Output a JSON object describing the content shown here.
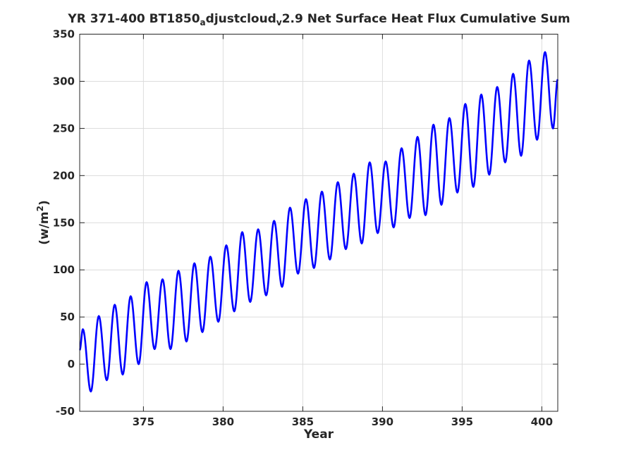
{
  "chart_data": {
    "type": "line",
    "title": {
      "part1": "YR 371-400 BT1850",
      "sub1": "a",
      "part2": "djustcloud",
      "sub2": "v",
      "part3": "2.9 Net Surface Heat Flux  Cumulative Sum"
    },
    "xlabel": "Year",
    "ylabel": {
      "base": "(w/m",
      "sup": "2",
      "close": ")"
    },
    "xlim": [
      371,
      401
    ],
    "ylim": [
      -50,
      350
    ],
    "xticks": [
      375,
      380,
      385,
      390,
      395,
      400
    ],
    "yticks": [
      -50,
      0,
      50,
      100,
      150,
      200,
      250,
      300,
      350
    ],
    "grid": true,
    "line_color": "#0000ff",
    "series": [
      {
        "peaks": [
          [
            371.2,
            37
          ],
          [
            372.2,
            51
          ],
          [
            373.2,
            63
          ],
          [
            374.2,
            72
          ],
          [
            375.2,
            87
          ],
          [
            376.2,
            90
          ],
          [
            377.2,
            99
          ],
          [
            378.2,
            107
          ],
          [
            379.2,
            114
          ],
          [
            380.2,
            126
          ],
          [
            381.2,
            140
          ],
          [
            382.2,
            143
          ],
          [
            383.2,
            152
          ],
          [
            384.2,
            166
          ],
          [
            385.2,
            175
          ],
          [
            386.2,
            183
          ],
          [
            387.2,
            193
          ],
          [
            388.2,
            202
          ],
          [
            389.2,
            214
          ],
          [
            390.2,
            215
          ],
          [
            391.2,
            229
          ],
          [
            392.2,
            241
          ],
          [
            393.2,
            254
          ],
          [
            394.2,
            261
          ],
          [
            395.2,
            276
          ],
          [
            396.2,
            286
          ],
          [
            397.2,
            294
          ],
          [
            398.2,
            308
          ],
          [
            399.2,
            322
          ],
          [
            400.2,
            331
          ]
        ],
        "troughs": [
          [
            371.7,
            -29
          ],
          [
            372.7,
            -17
          ],
          [
            373.7,
            -11
          ],
          [
            374.7,
            0
          ],
          [
            375.7,
            16
          ],
          [
            376.7,
            16
          ],
          [
            377.7,
            24
          ],
          [
            378.7,
            34
          ],
          [
            379.7,
            45
          ],
          [
            380.7,
            56
          ],
          [
            381.7,
            66
          ],
          [
            382.7,
            73
          ],
          [
            383.7,
            82
          ],
          [
            384.7,
            96
          ],
          [
            385.7,
            102
          ],
          [
            386.7,
            111
          ],
          [
            387.7,
            122
          ],
          [
            388.7,
            128
          ],
          [
            389.7,
            139
          ],
          [
            390.7,
            145
          ],
          [
            391.7,
            155
          ],
          [
            392.7,
            158
          ],
          [
            393.7,
            169
          ],
          [
            394.7,
            182
          ],
          [
            395.7,
            188
          ],
          [
            396.7,
            201
          ],
          [
            397.7,
            214
          ],
          [
            398.7,
            221
          ],
          [
            399.7,
            238
          ],
          [
            400.7,
            250
          ]
        ],
        "start": [
          371.0,
          15
        ],
        "end": [
          401.0,
          302
        ]
      }
    ]
  }
}
